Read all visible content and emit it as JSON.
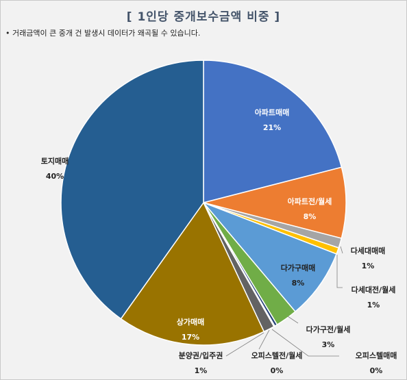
{
  "chart_data": {
    "type": "pie",
    "title": "[ 1인당 중개보수금액 비중 ]",
    "note": "• 거래금액이 큰 중개 건 발생시 데이터가 왜곡될 수 있습니다.",
    "slices": [
      {
        "name": "아파트매매",
        "value": 21,
        "label": "21%",
        "color": "#4472c4"
      },
      {
        "name": "아파트전/월세",
        "value": 8,
        "label": "8%",
        "color": "#ed7d31"
      },
      {
        "name": "다세대매매",
        "value": 1,
        "label": "1%",
        "color": "#a5a5a5"
      },
      {
        "name": "다세대전/월세",
        "value": 1,
        "label": "1%",
        "color": "#ffc000"
      },
      {
        "name": "다가구매매",
        "value": 8,
        "label": "8%",
        "color": "#5b9bd5"
      },
      {
        "name": "다가구전/월세",
        "value": 3,
        "label": "3%",
        "color": "#70ad47"
      },
      {
        "name": "오피스텔매매",
        "value": 0,
        "label": "0%",
        "color": "#264478"
      },
      {
        "name": "오피스텔전/월세",
        "value": 0,
        "label": "0%",
        "color": "#9e480e"
      },
      {
        "name": "분양권/입주권",
        "value": 1,
        "label": "1%",
        "color": "#636363"
      },
      {
        "name": "상가매매",
        "value": 17,
        "label": "17%",
        "color": "#997300"
      },
      {
        "name": "토지매매",
        "value": 40,
        "label": "40%",
        "color": "#255e91"
      }
    ]
  }
}
